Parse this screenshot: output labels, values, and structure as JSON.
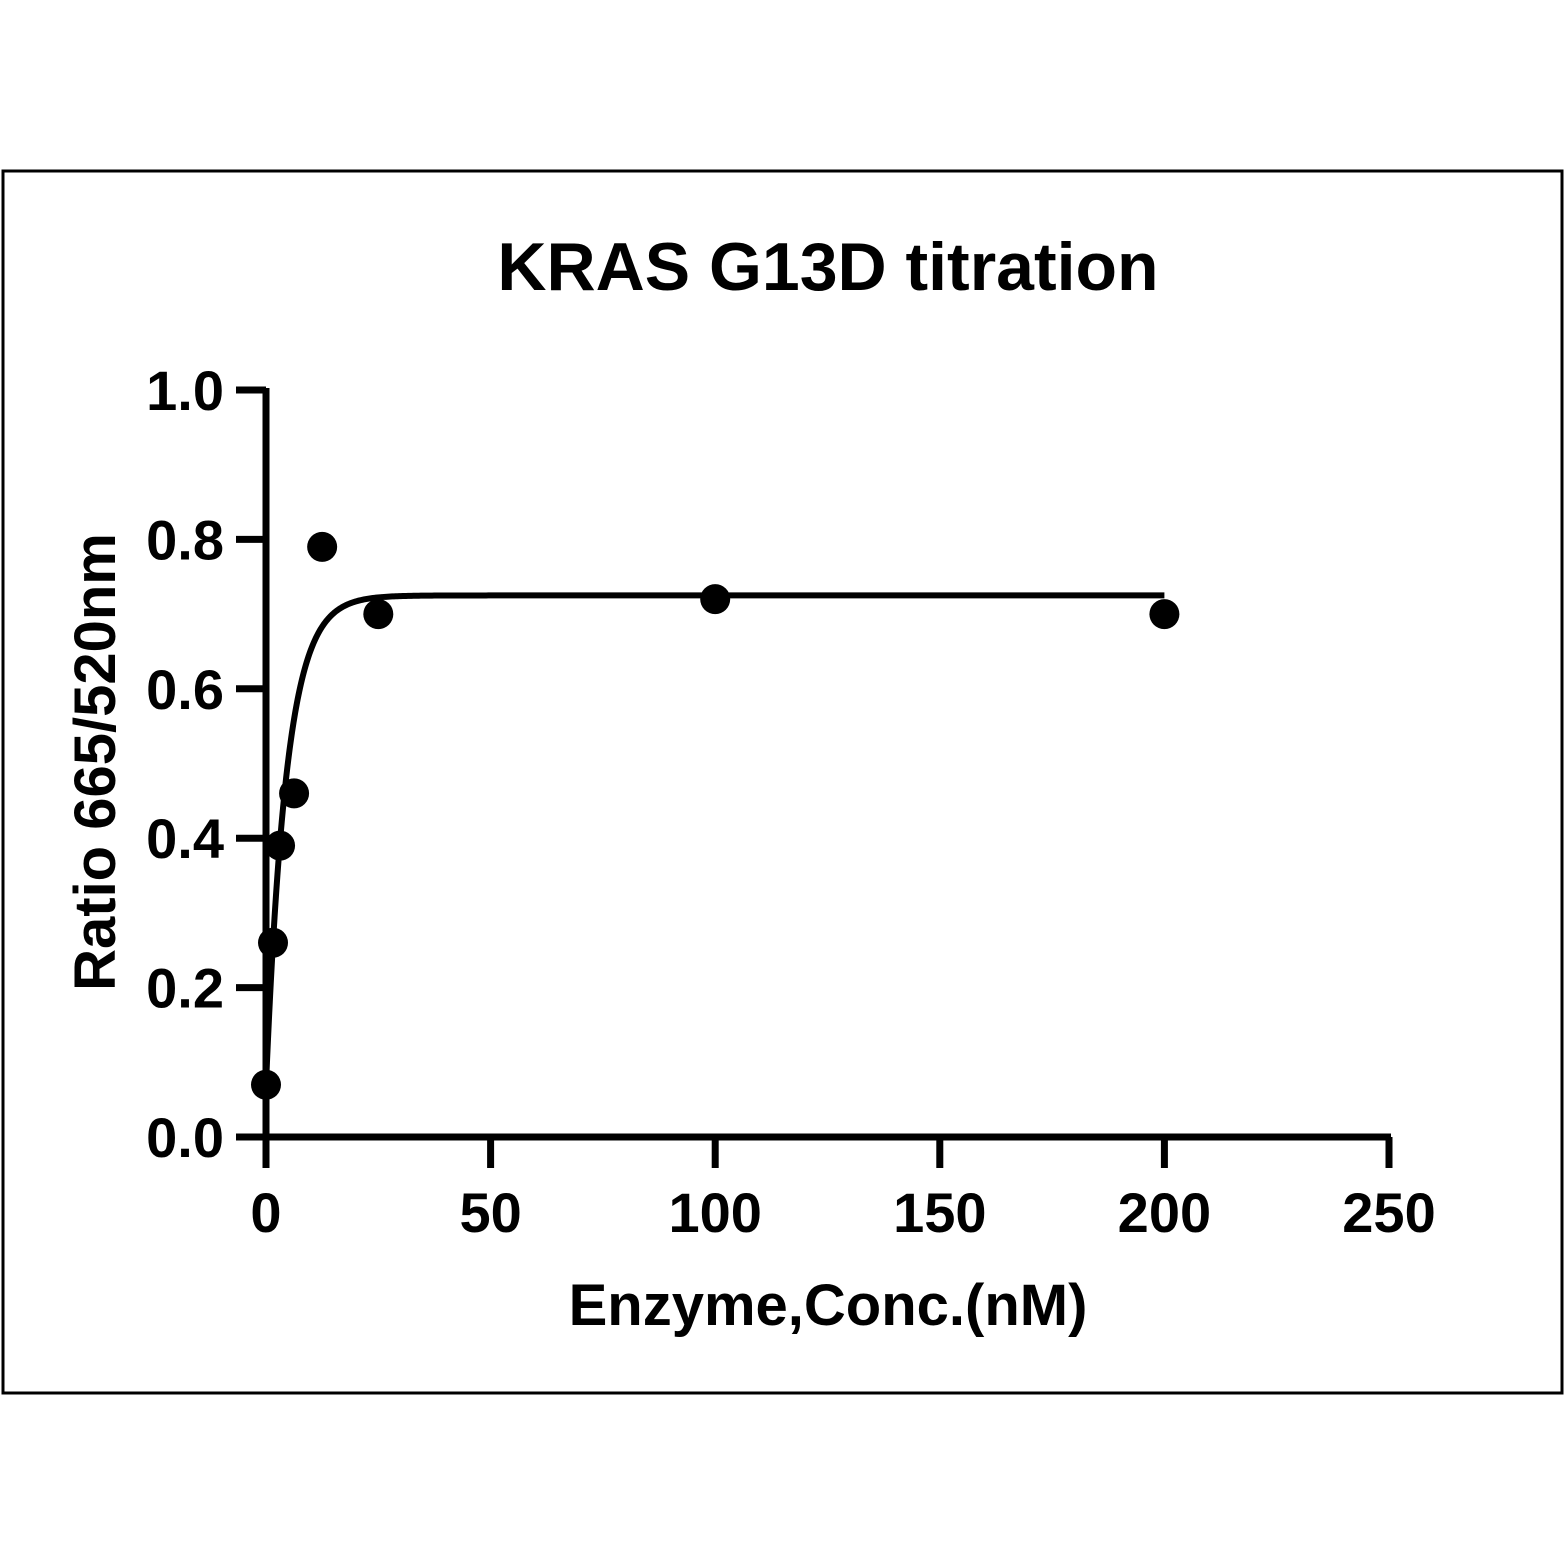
{
  "chart_data": {
    "type": "scatter",
    "title": "KRAS G13D titration",
    "xlabel": "Enzyme,Conc.(nM)",
    "ylabel": "Ratio 665/520nm",
    "xlim": [
      0,
      250
    ],
    "ylim": [
      0.0,
      1.0
    ],
    "x_ticks": [
      0,
      50,
      100,
      150,
      200,
      250
    ],
    "x_tick_labels": [
      "0",
      "50",
      "100",
      "150",
      "200",
      "250"
    ],
    "y_ticks": [
      0.0,
      0.2,
      0.4,
      0.6,
      0.8,
      1.0
    ],
    "y_tick_labels": [
      "0.0",
      "0.2",
      "0.4",
      "0.6",
      "0.8",
      "1.0"
    ],
    "grid": false,
    "legend": "none",
    "series": [
      {
        "points": [
          {
            "x": 0,
            "y": 0.07
          },
          {
            "x": 1.56,
            "y": 0.26
          },
          {
            "x": 3.13,
            "y": 0.39
          },
          {
            "x": 6.25,
            "y": 0.46
          },
          {
            "x": 12.5,
            "y": 0.79
          },
          {
            "x": 25,
            "y": 0.7
          },
          {
            "x": 100,
            "y": 0.72
          },
          {
            "x": 200,
            "y": 0.7
          }
        ]
      }
    ],
    "fit_curve": {
      "model": "one-phase association",
      "y0": 0.07,
      "plateau": 0.725,
      "k": 0.22,
      "x_range": [
        0,
        200
      ]
    },
    "colors": {
      "marker": "#000000",
      "line": "#000000",
      "axes": "#000000",
      "frame": "#000000",
      "background": "#ffffff"
    }
  }
}
